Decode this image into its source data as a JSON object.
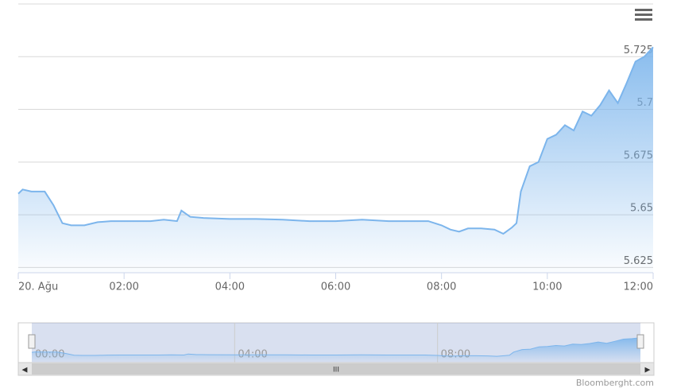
{
  "chart_data": {
    "type": "area",
    "x": [
      0,
      0.083,
      0.25,
      0.5,
      0.667,
      0.833,
      1,
      1.25,
      1.5,
      1.75,
      2,
      2.5,
      2.75,
      3,
      3.083,
      3.25,
      3.5,
      4,
      4.5,
      5,
      5.5,
      6,
      6.5,
      7,
      7.5,
      7.75,
      8,
      8.167,
      8.333,
      8.5,
      8.75,
      9,
      9.167,
      9.333,
      9.417,
      9.5,
      9.667,
      9.833,
      10,
      10.167,
      10.333,
      10.5,
      10.667,
      10.833,
      11,
      11.167,
      11.333,
      11.5,
      11.667,
      11.833,
      12
    ],
    "series": [
      {
        "color": "#7cb5ec",
        "values": [
          5.66,
          5.662,
          5.661,
          5.661,
          5.6545,
          5.646,
          5.645,
          5.645,
          5.6465,
          5.647,
          5.647,
          5.647,
          5.6477,
          5.647,
          5.652,
          5.649,
          5.6485,
          5.648,
          5.648,
          5.6477,
          5.647,
          5.647,
          5.6477,
          5.647,
          5.647,
          5.647,
          5.645,
          5.643,
          5.642,
          5.6435,
          5.6435,
          5.643,
          5.641,
          5.644,
          5.646,
          5.661,
          5.673,
          5.675,
          5.686,
          5.688,
          5.6925,
          5.69,
          5.699,
          5.697,
          5.702,
          5.709,
          5.703,
          5.7125,
          5.7227,
          5.725,
          5.7295
        ]
      }
    ],
    "xlim": [
      0,
      12
    ],
    "xticks": [
      {
        "value": 0,
        "label": "20. Ağu"
      },
      {
        "value": 2,
        "label": "02:00"
      },
      {
        "value": 4,
        "label": "04:00"
      },
      {
        "value": 6,
        "label": "06:00"
      },
      {
        "value": 8,
        "label": "08:00"
      },
      {
        "value": 10,
        "label": "10:00"
      },
      {
        "value": 12,
        "label": "12:00"
      }
    ],
    "ylim": [
      5.6225,
      5.75
    ],
    "yticks": [
      5.625,
      5.65,
      5.675,
      5.7,
      5.725
    ],
    "grid": true,
    "navigator_xticks": [
      {
        "value": 0,
        "label": "00:00"
      },
      {
        "value": 4,
        "label": "04:00"
      },
      {
        "value": 8,
        "label": "08:00"
      }
    ],
    "credits": "Bloomberght.com"
  }
}
